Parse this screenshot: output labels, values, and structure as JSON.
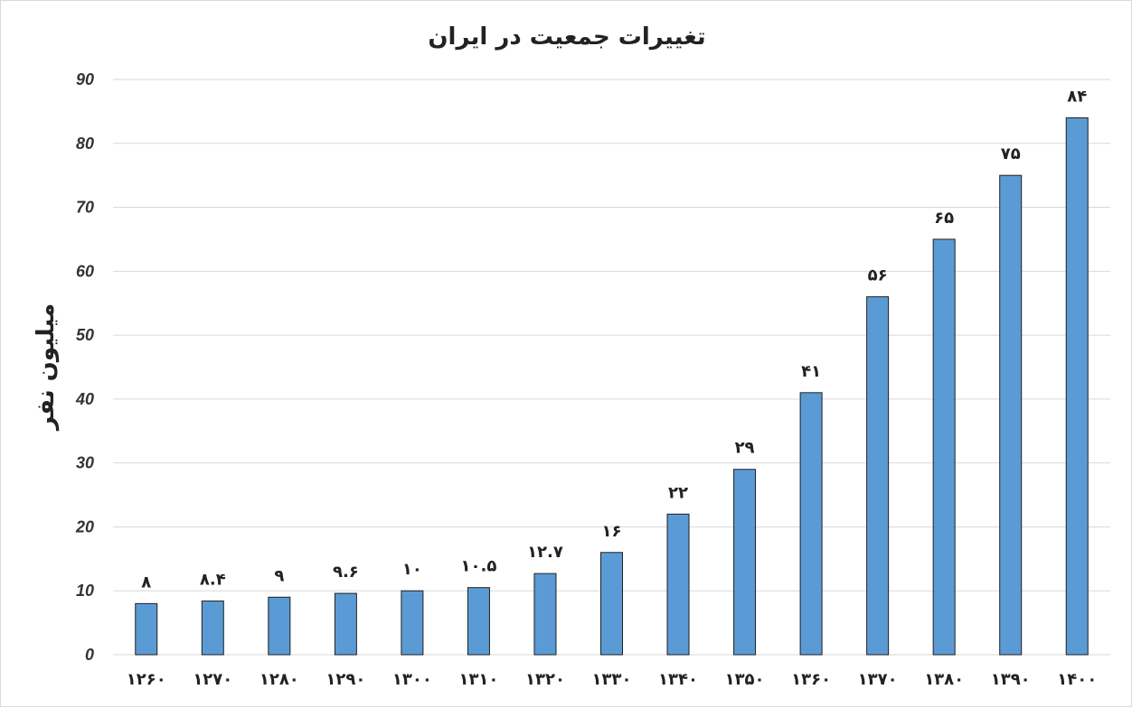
{
  "chart_data": {
    "type": "bar",
    "title": "تغییرات جمعیت در ایران",
    "xlabel": "",
    "ylabel": "میلیون نفر",
    "categories": [
      "۱۲۶۰",
      "۱۲۷۰",
      "۱۲۸۰",
      "۱۲۹۰",
      "۱۳۰۰",
      "۱۳۱۰",
      "۱۳۲۰",
      "۱۳۳۰",
      "۱۳۴۰",
      "۱۳۵۰",
      "۱۳۶۰",
      "۱۳۷۰",
      "۱۳۸۰",
      "۱۳۹۰",
      "۱۴۰۰"
    ],
    "values": [
      8,
      8.4,
      9,
      9.6,
      10,
      10.5,
      12.7,
      16,
      22,
      29,
      41,
      56,
      65,
      75,
      84
    ],
    "data_labels": [
      "۸",
      "۸.۴",
      "۹",
      "۹.۶",
      "۱۰",
      "۱۰.۵",
      "۱۲.۷",
      "۱۶",
      "۲۲",
      "۲۹",
      "۴۱",
      "۵۶",
      "۶۵",
      "۷۵",
      "۸۴"
    ],
    "ylim": [
      0,
      90
    ],
    "yticks": [
      "0",
      "10",
      "20",
      "30",
      "40",
      "50",
      "60",
      "70",
      "80",
      "90"
    ],
    "grid": true,
    "legend": "none",
    "colors": {
      "bar": "#5b9bd5",
      "bar_border": "#1f1f1f",
      "grid": "#d9d9d9"
    }
  }
}
